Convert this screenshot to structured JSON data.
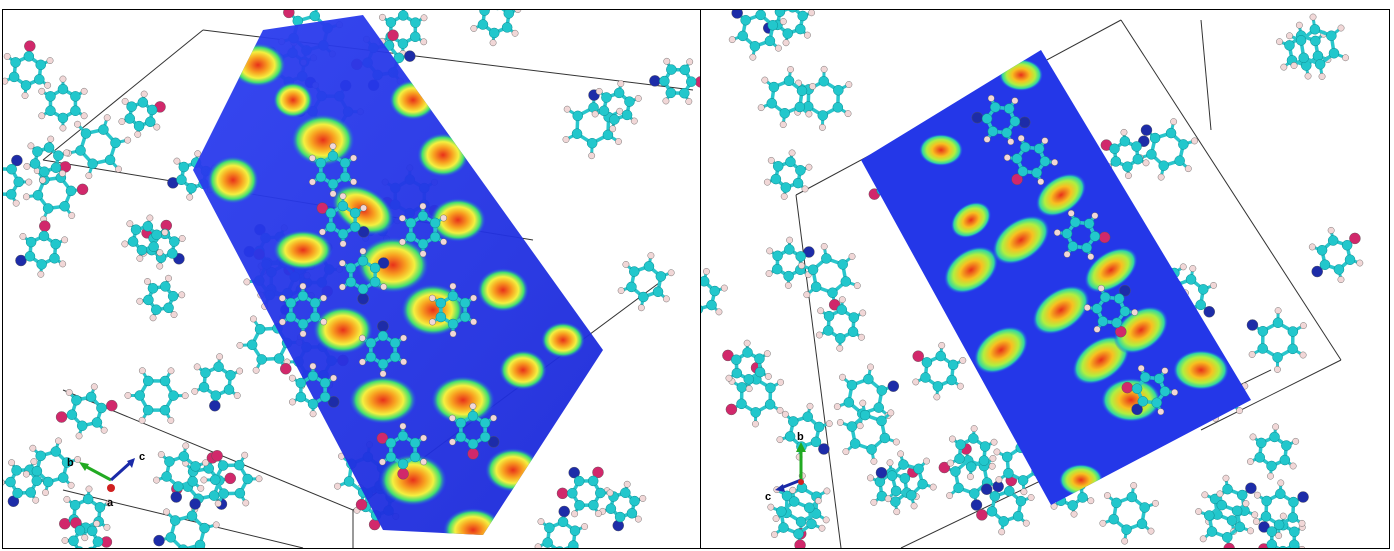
{
  "figure": {
    "panels": [
      {
        "id": "left",
        "axis_labels": {
          "b": "b",
          "c": "c",
          "a": "a"
        }
      },
      {
        "id": "right",
        "axis_labels": {
          "b": "b",
          "c": "c"
        }
      }
    ]
  },
  "colors": {
    "carbon": "#22c7cc",
    "bond": "#29c6cc",
    "hydrogen": "#f1d7d7",
    "oxygen": "#d1286b",
    "nitrogen": "#1d2ca8",
    "map_low": "#1c2be0",
    "map_mid": "#00d0a0",
    "map_high": "#e23a1a"
  }
}
